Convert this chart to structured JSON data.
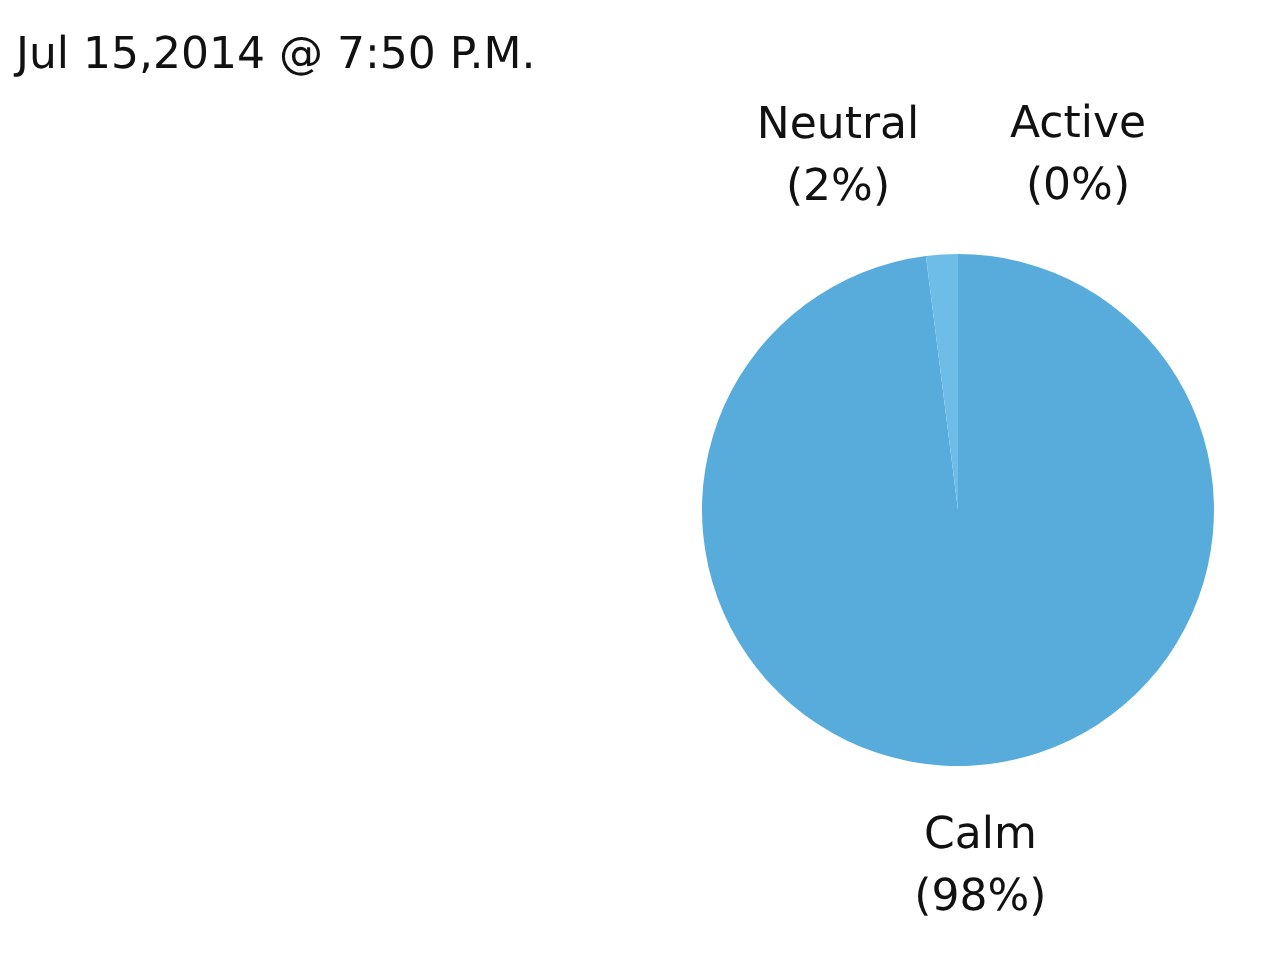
{
  "chart_data": {
    "type": "pie",
    "title": "Jul 15,2014 @ 7:50 P.M.",
    "categories": [
      "Calm",
      "Neutral",
      "Active"
    ],
    "values": [
      98,
      2,
      0
    ],
    "colors": [
      "#58acdb",
      "#6dbde8",
      "#7fc6ec"
    ],
    "value_labels": [
      "(98%)",
      "(2%)",
      "(0%)"
    ]
  }
}
